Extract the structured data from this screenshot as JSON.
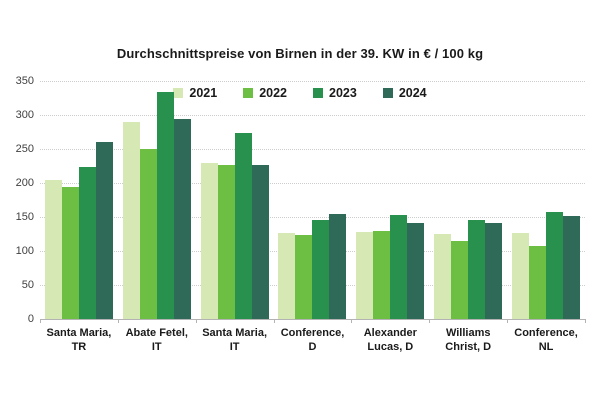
{
  "chart_data": {
    "type": "bar",
    "title": "Durchschnittspreise von Birnen in der 39. KW in € / 100 kg",
    "categories": [
      "Santa Maria,\nTR",
      "Abate Fetel,\nIT",
      "Santa Maria,\nIT",
      "Conference,\nD",
      "Alexander\nLucas, D",
      "Williams\nChrist, D",
      "Conference,\nNL"
    ],
    "series": [
      {
        "name": "2021",
        "color": "#d6e8b4",
        "values": [
          204,
          290,
          230,
          127,
          128,
          125,
          127
        ]
      },
      {
        "name": "2022",
        "color": "#6cbf42",
        "values": [
          194,
          250,
          227,
          124,
          130,
          115,
          107
        ]
      },
      {
        "name": "2023",
        "color": "#27914d",
        "values": [
          224,
          334,
          273,
          145,
          153,
          145,
          157
        ]
      },
      {
        "name": "2024",
        "color": "#2e6a57",
        "values": [
          260,
          294,
          226,
          155,
          141,
          141,
          152
        ]
      }
    ],
    "ylim": [
      0,
      350
    ],
    "yticks": [
      0,
      50,
      100,
      150,
      200,
      250,
      300,
      350
    ],
    "xlabel": "",
    "ylabel": "",
    "grid": "horizontal-dotted",
    "legend_position": "top-center"
  }
}
